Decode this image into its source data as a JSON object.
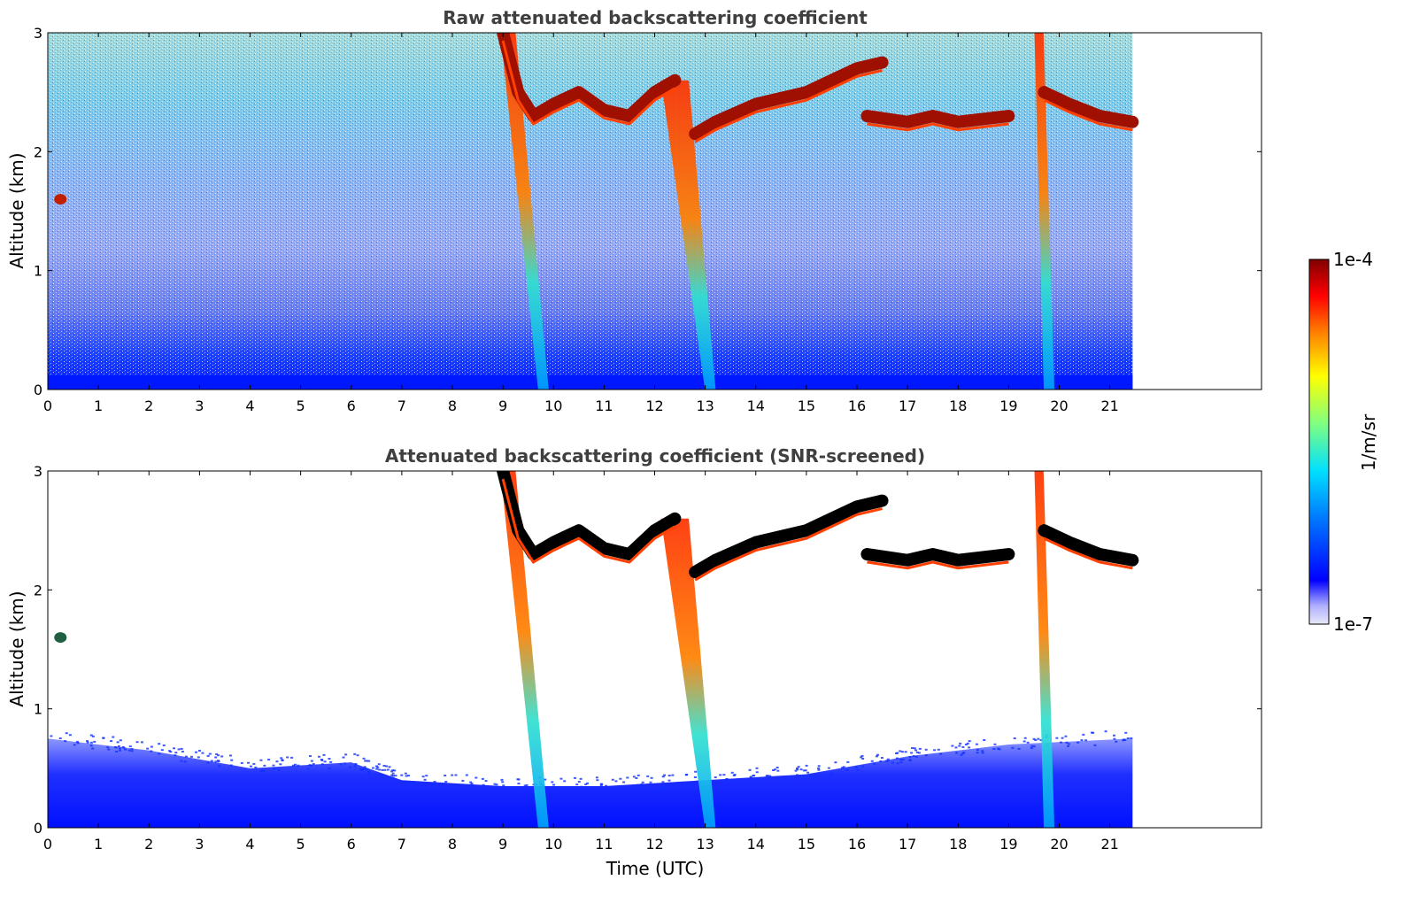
{
  "chart_data": [
    {
      "type": "heatmap",
      "title": "Raw attenuated backscattering coefficient",
      "xlabel": "",
      "ylabel": "Altitude (km)",
      "xlim": [
        0,
        24
      ],
      "ylim": [
        0,
        3
      ],
      "xticks": [
        0,
        1,
        2,
        3,
        4,
        5,
        6,
        7,
        8,
        9,
        10,
        11,
        12,
        13,
        14,
        15,
        16,
        17,
        18,
        19,
        20,
        21
      ],
      "yticks": [
        0,
        1,
        2
      ],
      "ymax_label": 3,
      "data_end_time": 21.45,
      "screened": false,
      "cloud_layers": [
        {
          "t": [
            9.0,
            9.3,
            9.6,
            10.0,
            10.5,
            11.0,
            11.5,
            12.0,
            12.4
          ],
          "alt": [
            3.0,
            2.5,
            2.3,
            2.4,
            2.5,
            2.35,
            2.3,
            2.5,
            2.6
          ]
        },
        {
          "t": [
            12.8,
            13.2,
            14.0,
            15.0,
            15.5,
            16.0,
            16.5
          ],
          "alt": [
            2.15,
            2.25,
            2.4,
            2.5,
            2.6,
            2.7,
            2.75
          ]
        },
        {
          "t": [
            16.2,
            17.0,
            17.5,
            18.0,
            19.0
          ],
          "alt": [
            2.3,
            2.25,
            2.3,
            2.25,
            2.3
          ]
        },
        {
          "t": [
            19.7,
            20.2,
            20.8,
            21.45
          ],
          "alt": [
            2.5,
            2.4,
            2.3,
            2.25
          ]
        }
      ],
      "precip_fallstreaks": [
        {
          "t_top": 9.1,
          "t_bottom": 9.8,
          "alt_top": 3.0,
          "width": 0.3
        },
        {
          "t_top": 12.4,
          "t_bottom": 13.1,
          "alt_top": 2.6,
          "width": 0.55
        },
        {
          "t_top": 19.6,
          "t_bottom": 19.8,
          "alt_top": 3.0,
          "width": 0.18
        }
      ],
      "isolated_echoes": [
        {
          "t": 0.25,
          "alt": 1.6
        }
      ]
    },
    {
      "type": "heatmap",
      "title": "Attenuated backscattering coefficient (SNR-screened)",
      "xlabel": "Time (UTC)",
      "ylabel": "Altitude (km)",
      "xlim": [
        0,
        24
      ],
      "ylim": [
        0,
        3
      ],
      "xticks": [
        0,
        1,
        2,
        3,
        4,
        5,
        6,
        7,
        8,
        9,
        10,
        11,
        12,
        13,
        14,
        15,
        16,
        17,
        18,
        19,
        20,
        21
      ],
      "yticks": [
        0,
        1,
        2
      ],
      "ymax_label": 3,
      "data_end_time": 21.45,
      "screened": true,
      "boundary_layer_top": {
        "t": [
          0,
          2,
          4,
          6,
          7,
          9,
          11,
          13,
          15,
          17,
          19,
          21.45
        ],
        "alt": [
          0.75,
          0.65,
          0.5,
          0.55,
          0.4,
          0.35,
          0.35,
          0.4,
          0.45,
          0.6,
          0.7,
          0.75
        ]
      },
      "isolated_echoes": [
        {
          "t": 0.25,
          "alt": 1.6
        }
      ]
    }
  ],
  "colorbar": {
    "label": "1/m/sr",
    "max_label": "1e-4",
    "min_label": "1e-7",
    "colormap": "jet",
    "colors": [
      "#e8e8f8",
      "#b0b0ff",
      "#0000ff",
      "#0080ff",
      "#00e0ff",
      "#80ff80",
      "#ffff00",
      "#ff8000",
      "#ff0000",
      "#800000"
    ]
  },
  "colors": {
    "clear_sky": "#ffffff",
    "noise_low": "#0018ff",
    "cloud_core": "#a01000",
    "attenuated": "#000000"
  }
}
